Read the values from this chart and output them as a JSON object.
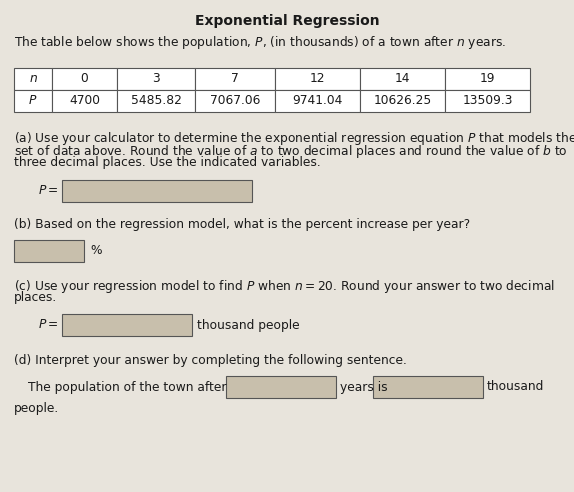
{
  "title": "Exponential Regression",
  "intro_text": "The table below shows the population, $P$, (in thousands) of a town after $n$ years.",
  "table_n": [
    "$n$",
    "0",
    "3",
    "7",
    "12",
    "14",
    "19"
  ],
  "table_p": [
    "$P$",
    "4700",
    "5485.82",
    "7067.06",
    "9741.04",
    "10626.25",
    "13509.3"
  ],
  "part_a_text1": "(a) Use your calculator to determine the exponential regression equation $P$ that models the",
  "part_a_text2": "set of data above. Round the value of $a$ to two decimal places and round the value of $b$ to",
  "part_a_text3": "three decimal places. Use the indicated variables.",
  "part_a_label": "$P =$",
  "part_b_text": "(b) Based on the regression model, what is the percent increase per year?",
  "part_b_suffix": "%",
  "part_c_text1": "(c) Use your regression model to find $P$ when $n = 20$. Round your answer to two decimal",
  "part_c_text2": "places.",
  "part_c_label": "$P =$",
  "part_c_suffix": "thousand people",
  "part_d_text": "(d) Interpret your answer by completing the following sentence.",
  "part_d_prefix": "The population of the town after",
  "part_d_mid": "years is",
  "part_d_end": "thousand",
  "part_d_final": "people.",
  "bg_color": "#e8e4dc",
  "box_fill": "#c8bfac",
  "white": "#ffffff",
  "text_color": "#1a1a1a",
  "title_fontsize": 10,
  "body_fontsize": 8.8
}
